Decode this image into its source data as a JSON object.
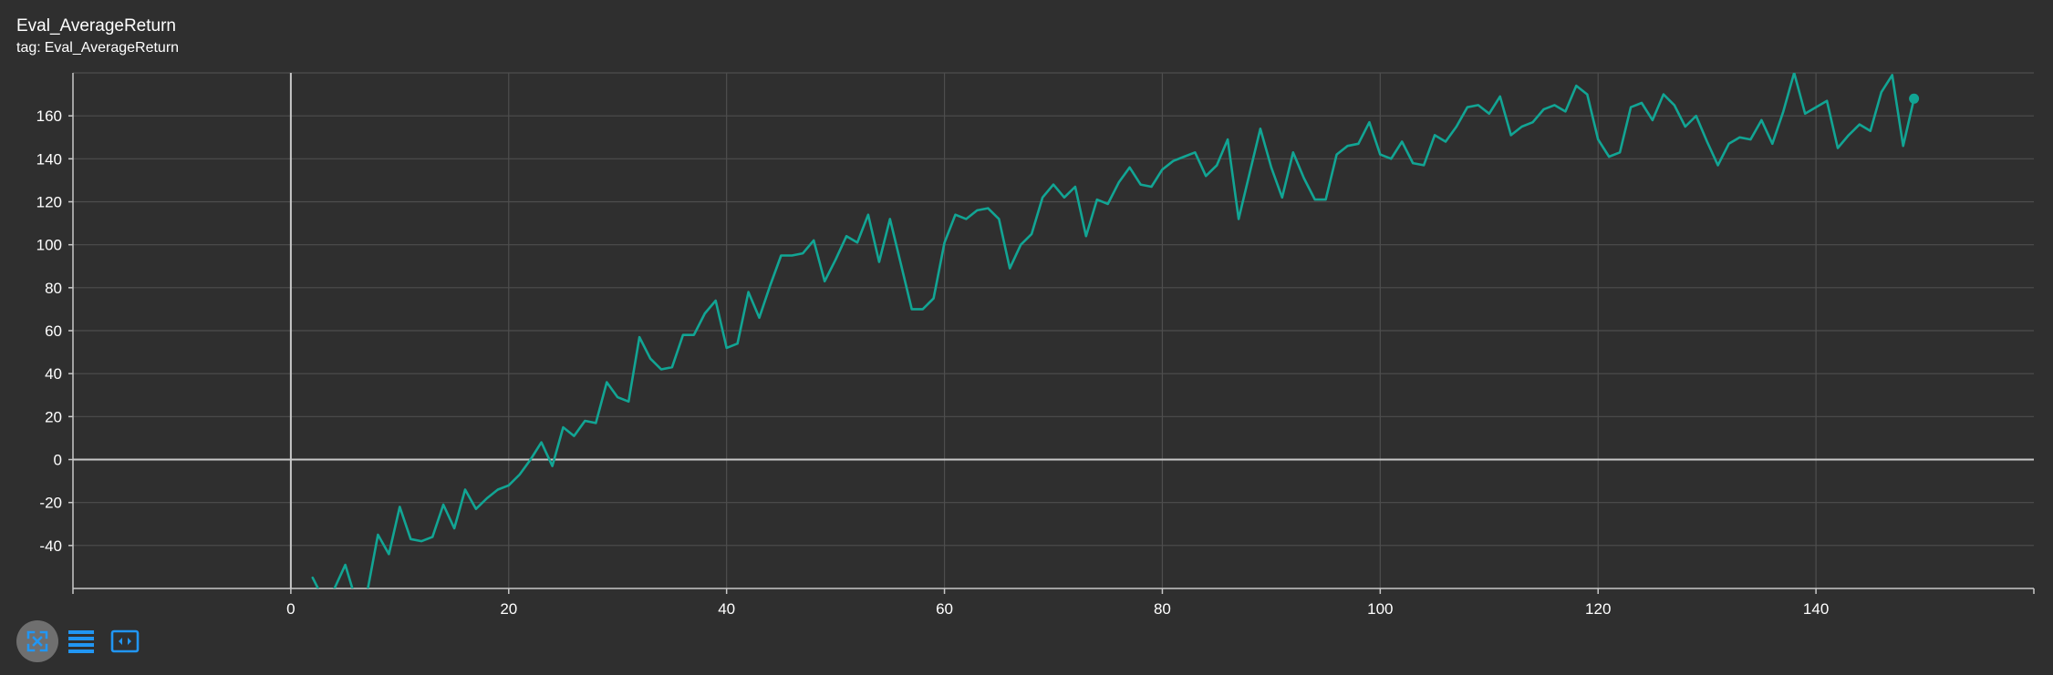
{
  "card": {
    "title": "Eval_AverageReturn",
    "tag_label": "tag:",
    "tag_value": "Eval_AverageReturn"
  },
  "toolbar": {
    "buttons": [
      {
        "icon": "fit-to-data-icon",
        "active": true
      },
      {
        "icon": "data-table-icon",
        "active": false
      },
      {
        "icon": "y-axis-range-icon",
        "active": false
      }
    ]
  },
  "colors": {
    "background": "#2f2f2f",
    "series": "#12a594",
    "grid": "#4e4e4e",
    "axis_zero": "#c8c8c8",
    "tick_text": "#ffffff",
    "toolbar_icon": "#2196f3"
  },
  "chart_data": {
    "type": "line",
    "title": "Eval_AverageReturn",
    "xlabel": "",
    "ylabel": "",
    "xlim": [
      -20,
      160
    ],
    "ylim": [
      -60,
      180
    ],
    "x_ticks": [
      0,
      20,
      40,
      60,
      80,
      100,
      120,
      140
    ],
    "y_ticks": [
      -40,
      -20,
      0,
      20,
      40,
      60,
      80,
      100,
      120,
      140,
      160
    ],
    "grid": true,
    "series": [
      {
        "name": "",
        "color": "#12a594",
        "x": [
          2,
          3,
          4,
          5,
          6,
          7,
          8,
          9,
          10,
          11,
          12,
          13,
          14,
          15,
          16,
          17,
          18,
          19,
          20,
          21,
          22,
          23,
          24,
          25,
          26,
          27,
          28,
          29,
          30,
          31,
          32,
          33,
          34,
          35,
          36,
          37,
          38,
          39,
          40,
          41,
          42,
          43,
          44,
          45,
          46,
          47,
          48,
          49,
          50,
          51,
          52,
          53,
          54,
          55,
          56,
          57,
          58,
          59,
          60,
          61,
          62,
          63,
          64,
          65,
          66,
          67,
          68,
          69,
          70,
          71,
          72,
          73,
          74,
          75,
          76,
          77,
          78,
          79,
          80,
          81,
          82,
          83,
          84,
          85,
          86,
          87,
          88,
          89,
          90,
          91,
          92,
          93,
          94,
          95,
          96,
          97,
          98,
          99,
          100,
          101,
          102,
          103,
          104,
          105,
          106,
          107,
          108,
          109,
          110,
          111,
          112,
          113,
          114,
          115,
          116,
          117,
          118,
          119,
          120,
          121,
          122,
          123,
          124,
          125,
          126,
          127,
          128,
          129,
          130,
          131,
          132,
          133,
          134,
          135,
          136,
          137,
          138,
          139,
          140,
          141,
          142,
          143,
          144,
          145,
          146,
          147,
          148,
          149
        ],
        "y": [
          -55,
          -65,
          -60,
          -49,
          -66,
          -62,
          -35,
          -44,
          -22,
          -37,
          -38,
          -36,
          -21,
          -32,
          -14,
          -23,
          -18,
          -14,
          -12,
          -7,
          0,
          8,
          -3,
          15,
          11,
          18,
          17,
          36,
          29,
          27,
          57,
          47,
          42,
          43,
          58,
          58,
          68,
          74,
          52,
          54,
          78,
          66,
          81,
          95,
          95,
          96,
          102,
          83,
          93,
          104,
          101,
          114,
          92,
          112,
          91,
          70,
          70,
          75,
          101,
          114,
          112,
          116,
          117,
          112,
          89,
          100,
          105,
          122,
          128,
          122,
          127,
          104,
          121,
          119,
          129,
          136,
          128,
          127,
          135,
          139,
          141,
          143,
          132,
          137,
          149,
          112,
          133,
          154,
          136,
          122,
          143,
          131,
          121,
          121,
          142,
          146,
          147,
          157,
          142,
          140,
          148,
          138,
          137,
          151,
          148,
          155,
          164,
          165,
          161,
          169,
          151,
          155,
          157,
          163,
          165,
          162,
          174,
          170,
          149,
          141,
          143,
          164,
          166,
          158,
          170,
          165,
          155,
          160,
          148,
          137,
          147,
          150,
          149,
          158,
          147,
          162,
          180,
          161,
          164,
          167,
          145,
          151,
          156,
          153,
          171,
          179,
          146,
          168
        ],
        "last_point": {
          "x": 149,
          "y": 168
        }
      }
    ]
  }
}
